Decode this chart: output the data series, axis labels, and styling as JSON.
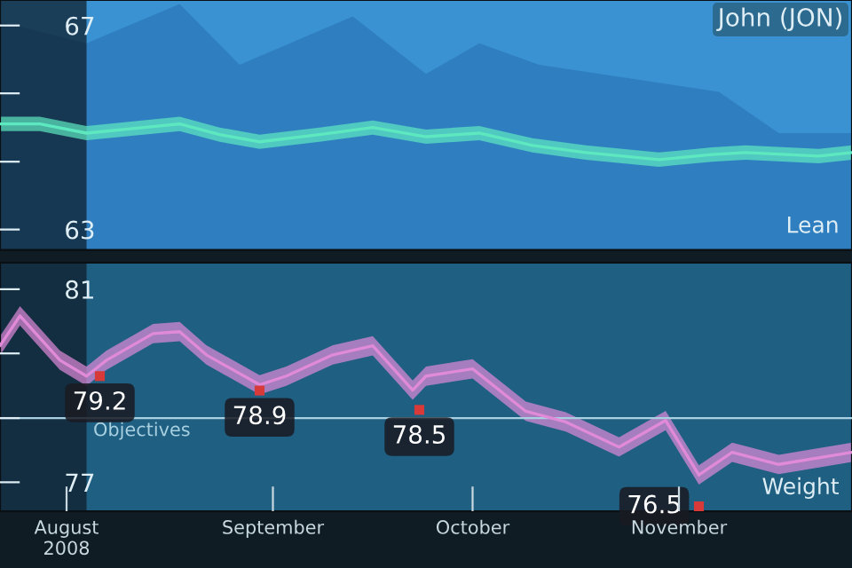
{
  "chart_data": [
    {
      "type": "line",
      "title": "John (JON)",
      "tick_labels": "y",
      "grid": false,
      "legend": false,
      "xlim": [
        "2008-07-22",
        "2008-11-27"
      ],
      "ylim": [
        62.6,
        67.5
      ],
      "yticks": [
        67,
        {
          "value": 65.67,
          "label": null
        },
        {
          "value": 64.33,
          "label": null
        },
        63
      ],
      "bands": [
        {
          "axis": "x",
          "from": "2008-07-22",
          "to": "2008-08-04",
          "label": null,
          "color": "#0d1a24"
        }
      ],
      "series": [
        {
          "type": "area",
          "color": "#2f7fc0",
          "x": [
            "2008-07-22",
            "2008-08-04",
            "2008-08-18",
            "2008-08-27",
            "2008-09-13",
            "2008-09-24",
            "2008-10-02",
            "2008-10-11",
            "2008-11-07",
            "2008-11-16",
            "2008-11-27"
          ],
          "values": [
            67.07,
            66.65,
            67.42,
            66.23,
            67.18,
            66.05,
            66.65,
            66.23,
            65.7,
            64.89,
            64.89
          ]
        },
        {
          "name": "Lean",
          "color": "#5ee8c0",
          "x": [
            "2008-07-22",
            "2008-07-28",
            "2008-08-04",
            "2008-08-18",
            "2008-08-24",
            "2008-08-30",
            "2008-09-08",
            "2008-09-16",
            "2008-09-24",
            "2008-10-02",
            "2008-10-10",
            "2008-10-18",
            "2008-10-29",
            "2008-11-06",
            "2008-11-11",
            "2008-11-22",
            "2008-11-27"
          ],
          "values": [
            65.07,
            65.07,
            64.89,
            65.07,
            64.86,
            64.72,
            64.86,
            65.0,
            64.82,
            64.89,
            64.65,
            64.51,
            64.37,
            64.47,
            64.51,
            64.44,
            64.51
          ],
          "lower": [
            64.93,
            64.93,
            64.75,
            64.93,
            64.72,
            64.58,
            64.72,
            64.86,
            64.68,
            64.75,
            64.51,
            64.37,
            64.23,
            64.33,
            64.37,
            64.3,
            64.37
          ],
          "upper": [
            65.21,
            65.21,
            65.03,
            65.21,
            65.0,
            64.86,
            65.0,
            65.14,
            64.96,
            65.03,
            64.79,
            64.65,
            64.51,
            64.61,
            64.65,
            64.58,
            64.65
          ]
        }
      ]
    },
    {
      "type": "line",
      "grid": false,
      "legend": false,
      "xlim": [
        "2008-07-22",
        "2008-11-27"
      ],
      "ylim": [
        76.4,
        81.55
      ],
      "xticks": [
        {
          "value": "2008-08-01",
          "label": "August\n2008"
        },
        {
          "value": "2008-09-01",
          "label": "September"
        },
        {
          "value": "2008-10-01",
          "label": "October"
        },
        {
          "value": "2008-11-01",
          "label": "November"
        }
      ],
      "yticks": [
        81,
        {
          "value": 79.67,
          "label": null
        },
        {
          "value": 78.33,
          "label": null
        },
        77
      ],
      "bands": [
        {
          "axis": "x",
          "from": "2008-07-22",
          "to": "2008-08-04",
          "label": null,
          "color": "#0d1a24"
        }
      ],
      "ref_lines": [
        {
          "axis": "y",
          "value": 78.33,
          "label": "Objectives",
          "color": "#a8d0e0"
        }
      ],
      "series": [
        {
          "name": "Weight",
          "color": "#e08ad8",
          "x": [
            "2008-07-22",
            "2008-07-25",
            "2008-07-31",
            "2008-08-04",
            "2008-08-07",
            "2008-08-14",
            "2008-08-18",
            "2008-08-22",
            "2008-08-30",
            "2008-09-03",
            "2008-09-10",
            "2008-09-16",
            "2008-09-22",
            "2008-09-24",
            "2008-10-01",
            "2008-10-09",
            "2008-10-15",
            "2008-10-23",
            "2008-10-30",
            "2008-11-04",
            "2008-11-09",
            "2008-11-16",
            "2008-11-27"
          ],
          "values": [
            79.83,
            80.45,
            79.53,
            79.2,
            79.53,
            80.08,
            80.12,
            79.64,
            79.02,
            79.2,
            79.64,
            79.83,
            78.91,
            79.2,
            79.35,
            78.47,
            78.25,
            77.73,
            78.28,
            77.15,
            77.62,
            77.37,
            77.62
          ],
          "lower": [
            79.63,
            80.25,
            79.33,
            79.0,
            79.33,
            79.88,
            79.92,
            79.44,
            78.82,
            79.0,
            79.44,
            79.63,
            78.71,
            79.0,
            79.15,
            78.27,
            78.05,
            77.53,
            78.08,
            76.95,
            77.42,
            77.17,
            77.42
          ],
          "upper": [
            80.03,
            80.65,
            79.73,
            79.4,
            79.73,
            80.28,
            80.32,
            79.84,
            79.22,
            79.4,
            79.84,
            80.03,
            79.11,
            79.4,
            79.55,
            78.67,
            78.45,
            77.93,
            78.48,
            77.35,
            77.82,
            77.57,
            77.82
          ]
        },
        {
          "type": "scatter",
          "color": "#d83a3a",
          "marker": "square",
          "x": [
            "2008-08-06",
            "2008-08-30",
            "2008-09-23",
            "2008-11-04"
          ],
          "values": [
            79.2,
            78.9,
            78.5,
            76.5
          ],
          "value_labels": [
            "79.2",
            "78.9",
            "78.5",
            "76.5"
          ]
        }
      ]
    }
  ]
}
